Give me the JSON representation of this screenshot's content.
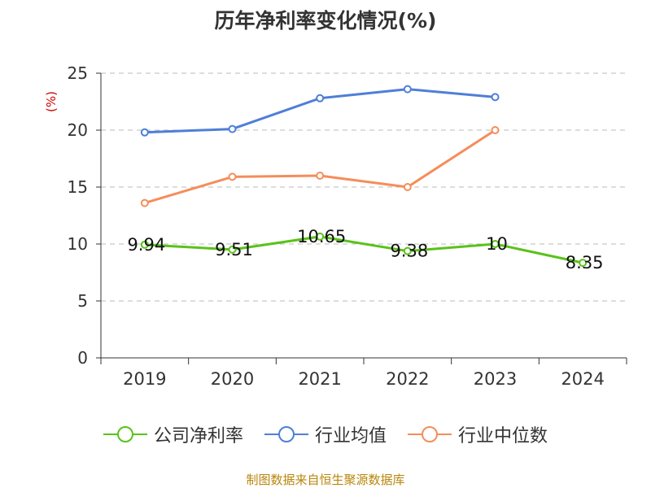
{
  "chart_data": {
    "type": "line",
    "title": "历年净利率变化情况(%)",
    "ylabel": "(%)",
    "xlabel": "",
    "categories": [
      "2019",
      "2020",
      "2021",
      "2022",
      "2023",
      "2024"
    ],
    "ylim": [
      0,
      25
    ],
    "yticks": [
      "0",
      "5",
      "10",
      "15",
      "20",
      "25"
    ],
    "grid": true,
    "legend_position": "bottom",
    "series": [
      {
        "name": "公司净利率",
        "values": [
          9.94,
          9.51,
          10.65,
          9.38,
          10,
          8.35
        ],
        "data_labels": [
          "9.94",
          "9.51",
          "10.65",
          "9.38",
          "10",
          "8.35"
        ],
        "color": "#5ac21a"
      },
      {
        "name": "行业均值",
        "values": [
          19.8,
          20.1,
          22.8,
          23.6,
          22.9,
          null
        ],
        "color": "#4e7fd8"
      },
      {
        "name": "行业中位数",
        "values": [
          13.6,
          15.9,
          16.0,
          15.0,
          20.0,
          null
        ],
        "color": "#f58d5a"
      }
    ]
  },
  "footer": {
    "source": "制图数据来自恒生聚源数据库"
  },
  "colors": {
    "axis": "#333333",
    "grid": "#bbbbbb",
    "ylabel": "#cc0000"
  }
}
